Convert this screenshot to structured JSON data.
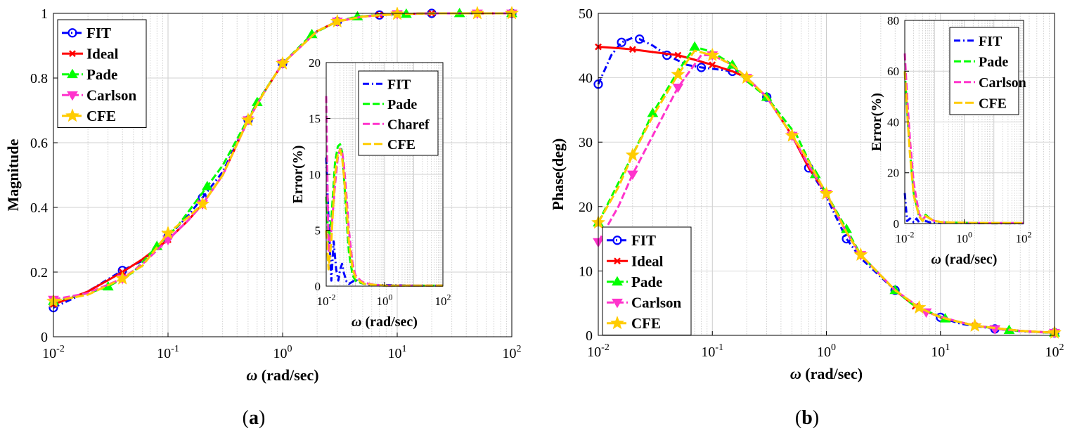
{
  "panel_labels": {
    "a": "(a)",
    "b": "(b)"
  },
  "chart_data": [
    {
      "id": "a-main",
      "type": "line",
      "xscale": "log",
      "xlim": [
        0.01,
        100
      ],
      "ylim": [
        0,
        1
      ],
      "xlabel": "ω (rad/sec)",
      "ylabel": "Magnitude",
      "grid": true,
      "legend_position": "top-left",
      "xtick_exponents": [
        -2,
        -1,
        0,
        1,
        2
      ],
      "yticks": [
        0,
        0.2,
        0.4,
        0.6,
        0.8,
        1
      ],
      "ytick_labels": [
        "0",
        "0.2",
        "0.4",
        "0.6",
        "0.8",
        "1"
      ],
      "series": [
        {
          "name": "FIT",
          "color": "#0000ff",
          "marker": "circle",
          "x": [
            0.01,
            0.02,
            0.04,
            0.06,
            0.1,
            0.15,
            0.2,
            0.3,
            0.5,
            0.7,
            1,
            2,
            3,
            5,
            7,
            10,
            20,
            50,
            100
          ],
          "y": [
            0.09,
            0.14,
            0.205,
            0.235,
            0.31,
            0.375,
            0.43,
            0.51,
            0.67,
            0.76,
            0.845,
            0.945,
            0.975,
            0.99,
            0.995,
            0.998,
            1.0,
            1.0,
            1.0
          ]
        },
        {
          "name": "Ideal",
          "color": "#ff0000",
          "marker": "x",
          "x": [
            0.01,
            0.02,
            0.04,
            0.06,
            0.1,
            0.15,
            0.2,
            0.3,
            0.5,
            0.7,
            1,
            2,
            3,
            5,
            7,
            10,
            20,
            50,
            100
          ],
          "y": [
            0.1,
            0.14,
            0.2,
            0.24,
            0.3,
            0.36,
            0.41,
            0.5,
            0.67,
            0.76,
            0.845,
            0.945,
            0.975,
            0.99,
            0.995,
            0.998,
            1.0,
            1.0,
            1.0
          ]
        },
        {
          "name": "Pade",
          "color": "#00ff00",
          "marker": "triangle-up",
          "x": [
            0.01,
            0.02,
            0.03,
            0.05,
            0.08,
            0.12,
            0.22,
            0.3,
            0.6,
            1,
            1.8,
            3,
            4.5,
            7,
            12,
            20,
            35,
            60,
            100
          ],
          "y": [
            0.11,
            0.135,
            0.155,
            0.2,
            0.28,
            0.34,
            0.465,
            0.53,
            0.725,
            0.845,
            0.935,
            0.975,
            0.99,
            0.995,
            0.998,
            1.0,
            1.0,
            1.0,
            1.0
          ]
        },
        {
          "name": "Carlson",
          "color": "#ff33cc",
          "marker": "triangle-down",
          "x": [
            0.01,
            0.02,
            0.04,
            0.06,
            0.1,
            0.15,
            0.2,
            0.3,
            0.5,
            0.7,
            1,
            2,
            3,
            5,
            10,
            20,
            50,
            100
          ],
          "y": [
            0.115,
            0.135,
            0.18,
            0.225,
            0.3,
            0.36,
            0.41,
            0.5,
            0.67,
            0.76,
            0.845,
            0.945,
            0.975,
            0.99,
            0.998,
            1.0,
            1.0,
            1.0
          ]
        },
        {
          "name": "CFE",
          "color": "#ffcc00",
          "marker": "star",
          "x": [
            0.01,
            0.02,
            0.04,
            0.06,
            0.1,
            0.15,
            0.2,
            0.3,
            0.5,
            0.7,
            1,
            2,
            3,
            5,
            10,
            20,
            50,
            100
          ],
          "y": [
            0.11,
            0.13,
            0.18,
            0.22,
            0.32,
            0.37,
            0.41,
            0.5,
            0.67,
            0.76,
            0.845,
            0.945,
            0.975,
            0.99,
            0.998,
            1.0,
            1.0,
            1.0
          ]
        }
      ]
    },
    {
      "id": "a-inset",
      "type": "line",
      "xscale": "log",
      "xlim": [
        0.01,
        100
      ],
      "ylim": [
        0,
        20
      ],
      "xlabel": "ω (rad/sec)",
      "ylabel": "Error(%)",
      "grid": true,
      "legend_position": "top-right",
      "xtick_exponents": [
        -2,
        0,
        2
      ],
      "yticks": [
        0,
        5,
        10,
        15,
        20
      ],
      "ytick_labels": [
        "0",
        "5",
        "10",
        "15",
        "20"
      ],
      "series": [
        {
          "name": "FIT",
          "color": "#0000ff",
          "marker": "none",
          "x": [
            0.01,
            0.012,
            0.015,
            0.018,
            0.022,
            0.026,
            0.03,
            0.035,
            0.04,
            0.05,
            0.06,
            0.08,
            0.1,
            0.15,
            0.2,
            0.3,
            1,
            10,
            100
          ],
          "y": [
            11.5,
            6,
            0.5,
            4,
            1.5,
            0.5,
            1.5,
            2,
            1.2,
            0.4,
            0.2,
            0.4,
            0.6,
            0.3,
            0.2,
            0.1,
            0.1,
            0.05,
            0.05
          ]
        },
        {
          "name": "Pade",
          "color": "#00ff00",
          "marker": "none",
          "x": [
            0.01,
            0.012,
            0.015,
            0.02,
            0.025,
            0.03,
            0.035,
            0.04,
            0.05,
            0.06,
            0.08,
            0.1,
            0.15,
            0.2,
            0.5,
            1,
            10,
            100
          ],
          "y": [
            8,
            4,
            6,
            11,
            12.5,
            12.7,
            12,
            10,
            6,
            3,
            1,
            0.5,
            0.3,
            0.2,
            0.1,
            0.05,
            0.05,
            0.05
          ]
        },
        {
          "name": "Charef",
          "color": "#ff33cc",
          "marker": "none",
          "x": [
            0.01,
            0.012,
            0.015,
            0.02,
            0.025,
            0.03,
            0.035,
            0.04,
            0.05,
            0.06,
            0.08,
            0.1,
            0.15,
            0.2,
            0.5,
            1,
            10,
            100
          ],
          "y": [
            17,
            3,
            5,
            9,
            11.5,
            12.3,
            12,
            11,
            8,
            5,
            2,
            1,
            0.5,
            0.3,
            0.1,
            0.05,
            0.05,
            0.05
          ]
        },
        {
          "name": "CFE",
          "color": "#ffcc00",
          "marker": "none",
          "x": [
            0.01,
            0.012,
            0.015,
            0.02,
            0.025,
            0.03,
            0.035,
            0.04,
            0.05,
            0.06,
            0.08,
            0.1,
            0.15,
            0.2,
            0.5,
            1,
            10,
            100
          ],
          "y": [
            5,
            1.5,
            4,
            10,
            11.8,
            12.2,
            11.5,
            10,
            7,
            4,
            1.5,
            0.8,
            0.4,
            0.2,
            0.1,
            0.05,
            0.05,
            0.05
          ]
        }
      ]
    },
    {
      "id": "b-main",
      "type": "line",
      "xscale": "log",
      "xlim": [
        0.01,
        100
      ],
      "ylim": [
        0,
        50
      ],
      "xlabel": "ω (rad/sec)",
      "ylabel": "Phase(deg)",
      "grid": true,
      "legend_position": "bottom-left",
      "xtick_exponents": [
        -2,
        -1,
        0,
        1,
        2
      ],
      "yticks": [
        0,
        10,
        20,
        30,
        40,
        50
      ],
      "ytick_labels": [
        "0",
        "10",
        "20",
        "30",
        "40",
        "50"
      ],
      "series": [
        {
          "name": "FIT",
          "color": "#0000ff",
          "marker": "circle",
          "x": [
            0.01,
            0.013,
            0.016,
            0.02,
            0.023,
            0.03,
            0.04,
            0.06,
            0.08,
            0.1,
            0.15,
            0.2,
            0.3,
            0.5,
            0.7,
            1,
            1.5,
            2,
            4,
            6,
            10,
            15,
            30,
            55,
            100
          ],
          "y": [
            39,
            43.5,
            45.5,
            46.2,
            46,
            45,
            43.5,
            42,
            41.6,
            41.4,
            41,
            40,
            37,
            31,
            26,
            21.5,
            15,
            12,
            7,
            4.5,
            2.8,
            1.8,
            1,
            0.6,
            0.4
          ]
        },
        {
          "name": "Ideal",
          "color": "#ff0000",
          "marker": "x",
          "x": [
            0.01,
            0.015,
            0.02,
            0.03,
            0.05,
            0.07,
            0.1,
            0.15,
            0.2,
            0.3,
            0.5,
            0.7,
            1,
            1.5,
            2,
            4,
            6,
            10,
            20,
            50,
            100
          ],
          "y": [
            44.8,
            44.6,
            44.4,
            44,
            43.5,
            42.8,
            42,
            41,
            40,
            37,
            31,
            26,
            22,
            16,
            12.5,
            7,
            4.5,
            2.8,
            1.5,
            0.7,
            0.4
          ]
        },
        {
          "name": "Pade",
          "color": "#00ff00",
          "marker": "triangle-up",
          "x": [
            0.01,
            0.02,
            0.03,
            0.05,
            0.07,
            0.1,
            0.15,
            0.2,
            0.3,
            0.55,
            0.8,
            1,
            1.5,
            2,
            4,
            6,
            11,
            20,
            40,
            90,
            100
          ],
          "y": [
            17.5,
            28,
            34.5,
            41,
            44.8,
            44,
            42,
            39.5,
            37,
            31,
            25,
            22,
            16.5,
            12.5,
            7,
            4.5,
            2.6,
            1.5,
            0.8,
            0.4,
            0.4
          ]
        },
        {
          "name": "Carlson",
          "color": "#ff33cc",
          "marker": "triangle-down",
          "x": [
            0.01,
            0.015,
            0.02,
            0.03,
            0.05,
            0.08,
            0.1,
            0.15,
            0.2,
            0.3,
            0.5,
            0.75,
            1,
            1.5,
            2,
            4,
            7.5,
            15,
            30,
            70,
            100
          ],
          "y": [
            14.5,
            20,
            25,
            31,
            38.5,
            43.5,
            43.5,
            42,
            40,
            37,
            31,
            25.5,
            22,
            16,
            12.5,
            7,
            3.6,
            2,
            1,
            0.5,
            0.4
          ]
        },
        {
          "name": "CFE",
          "color": "#ffcc00",
          "marker": "star",
          "x": [
            0.01,
            0.015,
            0.02,
            0.03,
            0.05,
            0.07,
            0.1,
            0.15,
            0.2,
            0.3,
            0.5,
            0.65,
            1,
            1.5,
            2,
            4,
            6.5,
            10,
            20,
            50,
            100
          ],
          "y": [
            17.5,
            23,
            28,
            34,
            40.5,
            44.2,
            43.5,
            42,
            40,
            37,
            31,
            28,
            22,
            16,
            12.5,
            7,
            4.3,
            2.8,
            1.5,
            0.7,
            0.4
          ]
        }
      ]
    },
    {
      "id": "b-inset",
      "type": "line",
      "xscale": "log",
      "xlim": [
        0.01,
        100
      ],
      "ylim": [
        0,
        80
      ],
      "xlabel": "ω (rad/sec)",
      "ylabel": "Error(%)",
      "grid": true,
      "legend_position": "top-right",
      "xtick_exponents": [
        -2,
        0,
        2
      ],
      "yticks": [
        0,
        20,
        40,
        60,
        80
      ],
      "ytick_labels": [
        "0",
        "20",
        "40",
        "60",
        "80"
      ],
      "series": [
        {
          "name": "FIT",
          "color": "#0000ff",
          "marker": "none",
          "x": [
            0.01,
            0.012,
            0.015,
            0.02,
            0.025,
            0.03,
            0.04,
            0.05,
            0.07,
            0.1,
            0.2,
            1,
            10,
            100
          ],
          "y": [
            12,
            1,
            2,
            0.5,
            2,
            0.5,
            1.5,
            1,
            0.5,
            0.5,
            0.3,
            0.2,
            0.1,
            0.1
          ]
        },
        {
          "name": "Pade",
          "color": "#00ff00",
          "marker": "none",
          "x": [
            0.01,
            0.012,
            0.015,
            0.02,
            0.03,
            0.04,
            0.05,
            0.07,
            0.1,
            0.2,
            1,
            10,
            100
          ],
          "y": [
            60,
            45,
            28,
            12,
            3,
            1,
            3.5,
            2,
            1,
            0.5,
            0.3,
            0.2,
            0.2
          ]
        },
        {
          "name": "Carlson",
          "color": "#ff33cc",
          "marker": "none",
          "x": [
            0.01,
            0.012,
            0.015,
            0.02,
            0.03,
            0.04,
            0.05,
            0.07,
            0.1,
            0.2,
            1,
            10,
            100
          ],
          "y": [
            67,
            50,
            33,
            16,
            4,
            1.5,
            3,
            2,
            1,
            0.5,
            0.3,
            0.2,
            0.2
          ]
        },
        {
          "name": "CFE",
          "color": "#ffcc00",
          "marker": "none",
          "x": [
            0.01,
            0.012,
            0.015,
            0.02,
            0.03,
            0.04,
            0.05,
            0.07,
            0.1,
            0.2,
            1,
            10,
            100
          ],
          "y": [
            60,
            44,
            27,
            11,
            3,
            1,
            3,
            2,
            1,
            0.5,
            0.3,
            0.2,
            0.2
          ]
        }
      ]
    }
  ]
}
